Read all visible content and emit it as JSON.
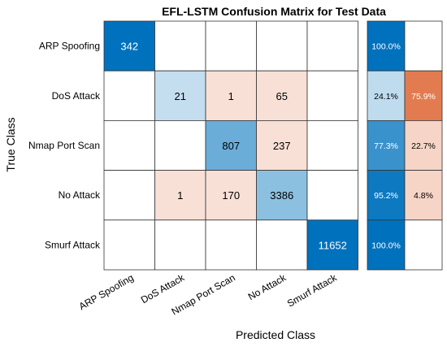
{
  "chart_data": {
    "type": "heatmap",
    "title": "EFL-LSTM Confusion Matrix for Test Data",
    "xlabel": "Predicted Class",
    "ylabel": "True Class",
    "classes": [
      "ARP Spoofing",
      "DoS Attack",
      "Nmap Port Scan",
      "No Attack",
      "Smurf Attack"
    ],
    "matrix": [
      [
        342,
        0,
        0,
        0,
        0
      ],
      [
        0,
        21,
        1,
        65,
        0
      ],
      [
        0,
        0,
        807,
        237,
        0
      ],
      [
        0,
        1,
        170,
        3386,
        0
      ],
      [
        0,
        0,
        0,
        0,
        11652
      ]
    ],
    "row_summary": [
      [
        "100.0%",
        ""
      ],
      [
        "24.1%",
        "75.9%"
      ],
      [
        "77.3%",
        "22.7%"
      ],
      [
        "95.2%",
        "4.8%"
      ],
      [
        "100.0%",
        ""
      ]
    ],
    "row_summary_values": [
      [
        100.0,
        0
      ],
      [
        24.1,
        75.9
      ],
      [
        77.3,
        22.7
      ],
      [
        95.2,
        4.8
      ],
      [
        100.0,
        0
      ]
    ],
    "colors": {
      "correct_base": "#0072BD",
      "incorrect_base": "#D95319"
    }
  }
}
